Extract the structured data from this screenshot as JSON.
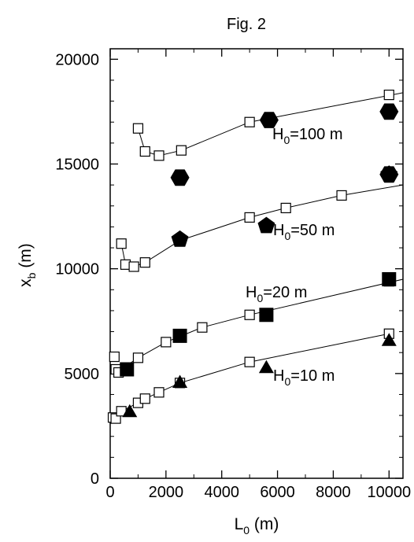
{
  "chart_data": {
    "type": "scatter",
    "title": "Fig. 2",
    "xlabel": {
      "main": "L",
      "sub": "0",
      "unit": " (m)"
    },
    "ylabel": {
      "main": "x",
      "sub": "b",
      "unit": " (m)"
    },
    "xlim": [
      0,
      10500
    ],
    "ylim": [
      0,
      20500
    ],
    "xticks": [
      0,
      2000,
      4000,
      6000,
      8000,
      10000
    ],
    "yticks": [
      0,
      5000,
      10000,
      15000,
      20000
    ],
    "grid": false,
    "legend": "none",
    "series": [
      {
        "label": {
          "main": "H",
          "sub": "0",
          "rest": "=100 m"
        },
        "open_points": [
          [
            1000,
            16700
          ],
          [
            1250,
            15600
          ],
          [
            1750,
            15400
          ],
          [
            2550,
            15650
          ],
          [
            5000,
            17000
          ],
          [
            10000,
            18300
          ]
        ],
        "line": [
          [
            1000,
            16700
          ],
          [
            1250,
            15600
          ],
          [
            1750,
            15400
          ],
          [
            2550,
            15650
          ],
          [
            5000,
            17000
          ],
          [
            10500,
            18400
          ]
        ],
        "filled_marker": "hexagon",
        "filled_points": [
          [
            2500,
            14350
          ],
          [
            5700,
            17100
          ],
          [
            10000,
            17500
          ],
          [
            10000,
            14500
          ]
        ]
      },
      {
        "label": {
          "main": "H",
          "sub": "0",
          "rest": "=50 m"
        },
        "open_points": [
          [
            400,
            11200
          ],
          [
            550,
            10200
          ],
          [
            850,
            10100
          ],
          [
            1250,
            10300
          ],
          [
            5000,
            12450
          ],
          [
            6300,
            12900
          ],
          [
            8300,
            13500
          ]
        ],
        "line": [
          [
            400,
            11200
          ],
          [
            550,
            10200
          ],
          [
            850,
            10100
          ],
          [
            1250,
            10300
          ],
          [
            2500,
            11350
          ],
          [
            5000,
            12450
          ],
          [
            6300,
            12900
          ],
          [
            8300,
            13500
          ],
          [
            10500,
            14000
          ]
        ],
        "filled_marker": "pentagon",
        "filled_points": [
          [
            2500,
            11400
          ],
          [
            5600,
            12050
          ],
          [
            10000,
            14500
          ]
        ]
      },
      {
        "label": {
          "main": "H",
          "sub": "0",
          "rest": "=20 m"
        },
        "open_points": [
          [
            150,
            5800
          ],
          [
            200,
            5200
          ],
          [
            300,
            5050
          ],
          [
            1000,
            5750
          ],
          [
            2000,
            6500
          ],
          [
            3300,
            7200
          ],
          [
            5000,
            7800
          ],
          [
            10000,
            9400
          ]
        ],
        "line": [
          [
            100,
            5300
          ],
          [
            500,
            5300
          ],
          [
            1000,
            5750
          ],
          [
            2000,
            6500
          ],
          [
            3300,
            7200
          ],
          [
            5000,
            7800
          ],
          [
            10500,
            9500
          ]
        ],
        "filled_marker": "square",
        "filled_points": [
          [
            600,
            5200
          ],
          [
            2500,
            6800
          ],
          [
            5600,
            7800
          ],
          [
            10000,
            9500
          ]
        ]
      },
      {
        "label": {
          "main": "H",
          "sub": "0",
          "rest": "=10 m"
        },
        "open_points": [
          [
            100,
            2900
          ],
          [
            200,
            2850
          ],
          [
            400,
            3200
          ],
          [
            1000,
            3600
          ],
          [
            1250,
            3800
          ],
          [
            1750,
            4100
          ],
          [
            2500,
            4550
          ],
          [
            5000,
            5550
          ],
          [
            10000,
            6900
          ]
        ],
        "line": [
          [
            100,
            2900
          ],
          [
            400,
            3200
          ],
          [
            1000,
            3600
          ],
          [
            1250,
            3800
          ],
          [
            1750,
            4100
          ],
          [
            2500,
            4550
          ],
          [
            5000,
            5550
          ],
          [
            10000,
            6900
          ]
        ],
        "filled_marker": "triangle",
        "filled_points": [
          [
            700,
            3200
          ],
          [
            2500,
            4600
          ],
          [
            5600,
            5300
          ],
          [
            10000,
            6600
          ]
        ]
      }
    ]
  }
}
